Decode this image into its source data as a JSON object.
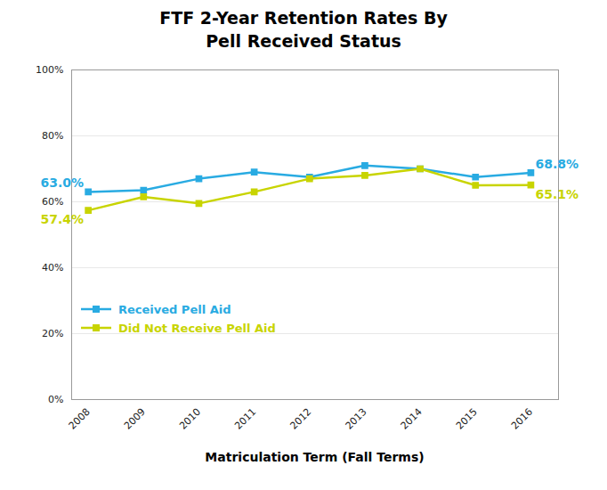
{
  "chart_data": {
    "type": "line",
    "title": "FTF 2-Year Retention Rates By\nPell Received Status",
    "xlabel": "Matriculation Term (Fall Terms)",
    "x": [
      2008,
      2009,
      2010,
      2011,
      2012,
      2013,
      2014,
      2015,
      2016
    ],
    "series": [
      {
        "name": "Received Pell Aid",
        "color": "#29ABE2",
        "values": [
          63.0,
          63.5,
          67.0,
          69.0,
          67.5,
          71.0,
          70.0,
          67.5,
          68.8
        ]
      },
      {
        "name": "Did Not Receive Pell Aid",
        "color": "#C8D400",
        "values": [
          57.4,
          61.5,
          59.5,
          63.0,
          67.0,
          68.0,
          70.0,
          65.0,
          65.1
        ]
      }
    ],
    "annotations": [
      {
        "text": "63.0%",
        "x": 2008,
        "y": 63.0,
        "series": "Received Pell Aid",
        "color": "#29ABE2"
      },
      {
        "text": "68.8%",
        "x": 2016,
        "y": 68.8,
        "series": "Received Pell Aid",
        "color": "#29ABE2"
      },
      {
        "text": "57.4%",
        "x": 2008,
        "y": 57.4,
        "series": "Did Not Receive Pell Aid",
        "color": "#C8D400"
      },
      {
        "text": "65.1%",
        "x": 2016,
        "y": 65.1,
        "series": "Did Not Receive Pell Aid",
        "color": "#C8D400"
      }
    ],
    "xlim": [
      2007.7,
      2016.5
    ],
    "xticks": [
      2008,
      2009,
      2010,
      2011,
      2012,
      2013,
      2014,
      2015,
      2016
    ],
    "ylim": [
      0,
      100
    ],
    "yticks": [
      {
        "value": 0,
        "label": "0%"
      },
      {
        "value": 20,
        "label": "20%"
      },
      {
        "value": 40,
        "label": "40%"
      },
      {
        "value": 60,
        "label": "60%"
      },
      {
        "value": 80,
        "label": "80%"
      },
      {
        "value": 100,
        "label": "100%"
      }
    ],
    "grid": true,
    "legend": "lower left",
    "marker": "square"
  }
}
